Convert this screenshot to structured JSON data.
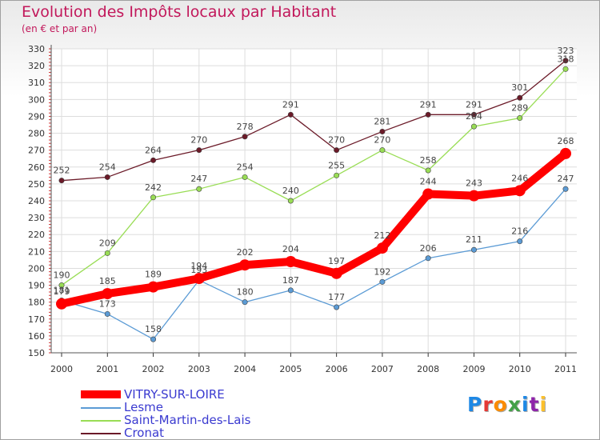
{
  "header": {
    "title": "Evolution des Impôts locaux par Habitant",
    "subtitle": "(en € et par an)"
  },
  "logo": {
    "text": "Proxiti",
    "letter_colors": [
      "#1e88e5",
      "#e53935",
      "#fb8c00",
      "#43a047",
      "#1e88e5",
      "#8e24aa",
      "#fbc02d"
    ]
  },
  "chart_data": {
    "type": "line",
    "title": "Evolution des Impôts locaux par Habitant",
    "subtitle": "(en € et par an)",
    "xlabel": "",
    "ylabel": "",
    "x": [
      "2000",
      "2001",
      "2002",
      "2003",
      "2004",
      "2005",
      "2006",
      "2007",
      "2008",
      "2009",
      "2010",
      "2011"
    ],
    "ylim": [
      150,
      330
    ],
    "yticks": [
      150,
      160,
      170,
      180,
      190,
      200,
      210,
      220,
      230,
      240,
      250,
      260,
      270,
      280,
      290,
      300,
      310,
      320,
      330
    ],
    "grid": true,
    "legend_position": "bottom-left",
    "series": [
      {
        "name": "Cronat",
        "color": "#6b1a28",
        "values": [
          252,
          254,
          264,
          270,
          278,
          291,
          270,
          281,
          291,
          291,
          301,
          323
        ]
      },
      {
        "name": "Saint-Martin-des-Lais",
        "color": "#99dd55",
        "values": [
          190,
          209,
          242,
          247,
          254,
          240,
          255,
          270,
          258,
          284,
          289,
          318
        ]
      },
      {
        "name": "Lesme",
        "color": "#5b9bd5",
        "values": [
          181,
          173,
          158,
          193,
          180,
          187,
          177,
          192,
          206,
          211,
          216,
          247
        ]
      },
      {
        "name": "VITRY-SUR-LOIRE",
        "color": "#ff0000",
        "values": [
          179,
          185,
          189,
          194,
          202,
          204,
          197,
          212,
          244,
          243,
          246,
          268
        ]
      }
    ]
  }
}
